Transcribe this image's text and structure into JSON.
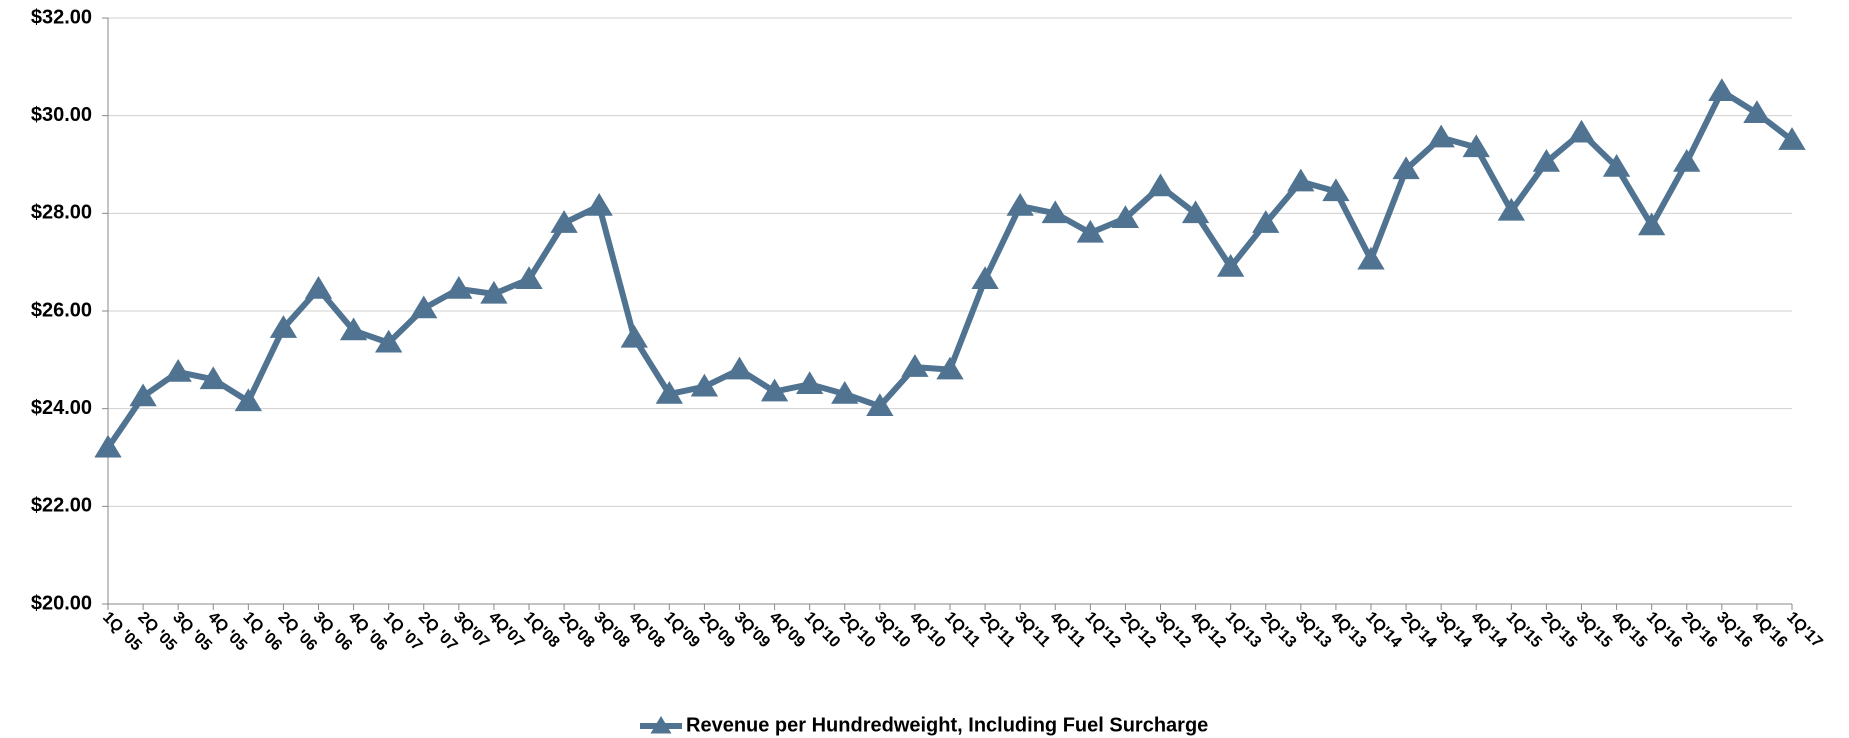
{
  "chart_data": {
    "type": "line",
    "categories": [
      "1Q '05",
      "2Q '05",
      "3Q '05",
      "4Q '05",
      "1Q '06",
      "2Q '06",
      "3Q '06",
      "4Q '06",
      "1Q '07",
      "2Q '07",
      "3Q'07",
      "4Q'07",
      "1Q'08",
      "2Q'08",
      "3Q'08",
      "4Q'08",
      "1Q'09",
      "2Q'09",
      "3Q'09",
      "4Q'09",
      "1Q'10",
      "2Q'10",
      "3Q'10",
      "4Q'10",
      "1Q'11",
      "2Q'11",
      "3Q'11",
      "4Q'11",
      "1Q'12",
      "2Q'12",
      "3Q'12",
      "4Q'12",
      "1Q'13",
      "2Q'13",
      "3Q'13",
      "4Q'13",
      "1Q'14",
      "2Q'14",
      "3Q'14",
      "4Q'14",
      "1Q'15",
      "2Q'15",
      "3Q'15",
      "4Q'15",
      "1Q'16",
      "2Q'16",
      "3Q'16",
      "4Q'16",
      "1Q'17"
    ],
    "series": [
      {
        "name": "Revenue per Hundredweight, Including Fuel Surcharge",
        "color": "#4f7390",
        "values": [
          23.2,
          24.25,
          24.75,
          24.6,
          24.15,
          25.65,
          26.45,
          25.6,
          25.35,
          26.05,
          26.45,
          26.35,
          26.65,
          27.8,
          28.15,
          25.45,
          24.3,
          24.45,
          24.8,
          24.35,
          24.5,
          24.3,
          24.05,
          24.85,
          24.8,
          26.65,
          28.15,
          28.0,
          27.6,
          27.9,
          28.55,
          28.0,
          26.9,
          27.8,
          28.65,
          28.45,
          27.05,
          28.9,
          29.55,
          29.35,
          28.05,
          29.05,
          29.65,
          28.95,
          27.75,
          29.05,
          30.5,
          30.05,
          29.5
        ]
      }
    ],
    "ylim": [
      20,
      32
    ],
    "yticks": [
      {
        "value": 20,
        "label": "$20.00"
      },
      {
        "value": 22,
        "label": "$22.00"
      },
      {
        "value": 24,
        "label": "$24.00"
      },
      {
        "value": 26,
        "label": "$26.00"
      },
      {
        "value": 28,
        "label": "$28.00"
      },
      {
        "value": 30,
        "label": "$30.00"
      },
      {
        "value": 32,
        "label": "$32.00"
      }
    ],
    "grid": true,
    "legend": "bottom"
  }
}
